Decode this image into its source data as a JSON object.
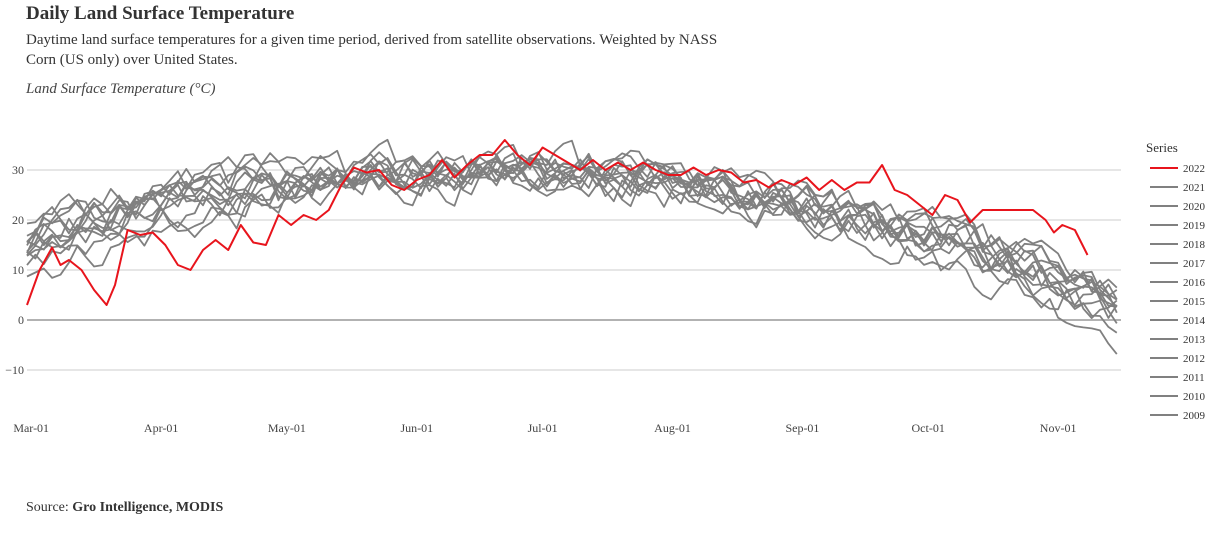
{
  "header": {
    "title": "Daily Land Surface Temperature",
    "subtitle": "Daytime land surface temperatures for a given time period, derived from satellite observations. Weighted by NASS Corn (US only) over United States.",
    "ylabel": "Land Surface Temperature  (°C)"
  },
  "footer": {
    "source_prefix": "Source: ",
    "source_name": "Gro Intelligence, MODIS"
  },
  "chart_data": {
    "type": "line",
    "title": "Daily Land Surface Temperature",
    "ylabel": "Land Surface Temperature  (°C)",
    "x_range": [
      "2022-02-28",
      "2022-11-16"
    ],
    "ylim": [
      -17,
      40
    ],
    "yticks": [
      -10,
      0,
      10,
      20,
      30
    ],
    "xticks": [
      "Mar-01",
      "Apr-01",
      "May-01",
      "Jun-01",
      "Jul-01",
      "Aug-01",
      "Sep-01",
      "Oct-01",
      "Nov-01"
    ],
    "grid": true,
    "legend": {
      "title": "Series",
      "position": "right"
    },
    "colors": {
      "highlight": "#e8141c",
      "other": "#808080",
      "grid": "#cccccc",
      "zero_line": "#999999"
    },
    "series": [
      {
        "name": "2022",
        "color": "#e8141c",
        "points": [
          [
            "2022-02-28",
            3
          ],
          [
            "2022-03-03",
            10
          ],
          [
            "2022-03-06",
            14.5
          ],
          [
            "2022-03-08",
            11
          ],
          [
            "2022-03-10",
            12
          ],
          [
            "2022-03-13",
            10
          ],
          [
            "2022-03-16",
            6
          ],
          [
            "2022-03-19",
            3
          ],
          [
            "2022-03-21",
            7
          ],
          [
            "2022-03-24",
            18
          ],
          [
            "2022-03-27",
            17
          ],
          [
            "2022-03-30",
            17.5
          ],
          [
            "2022-04-02",
            15
          ],
          [
            "2022-04-05",
            11
          ],
          [
            "2022-04-08",
            10
          ],
          [
            "2022-04-11",
            14
          ],
          [
            "2022-04-14",
            16
          ],
          [
            "2022-04-17",
            14
          ],
          [
            "2022-04-20",
            19
          ],
          [
            "2022-04-23",
            15.5
          ],
          [
            "2022-04-26",
            15
          ],
          [
            "2022-04-29",
            21
          ],
          [
            "2022-05-02",
            19
          ],
          [
            "2022-05-05",
            21
          ],
          [
            "2022-05-08",
            20
          ],
          [
            "2022-05-11",
            22
          ],
          [
            "2022-05-14",
            27
          ],
          [
            "2022-05-17",
            30.5
          ],
          [
            "2022-05-20",
            29.5
          ],
          [
            "2022-05-23",
            30
          ],
          [
            "2022-05-26",
            27
          ],
          [
            "2022-05-29",
            26
          ],
          [
            "2022-06-01",
            28
          ],
          [
            "2022-06-04",
            29
          ],
          [
            "2022-06-07",
            32
          ],
          [
            "2022-06-10",
            28.5
          ],
          [
            "2022-06-13",
            31
          ],
          [
            "2022-06-16",
            33
          ],
          [
            "2022-06-19",
            33
          ],
          [
            "2022-06-22",
            36
          ],
          [
            "2022-06-25",
            33
          ],
          [
            "2022-06-28",
            31
          ],
          [
            "2022-07-01",
            34.5
          ],
          [
            "2022-07-04",
            33
          ],
          [
            "2022-07-07",
            31.5
          ],
          [
            "2022-07-10",
            30
          ],
          [
            "2022-07-13",
            32
          ],
          [
            "2022-07-16",
            30
          ],
          [
            "2022-07-19",
            31.5
          ],
          [
            "2022-07-22",
            30
          ],
          [
            "2022-07-25",
            31.5
          ],
          [
            "2022-07-28",
            30
          ],
          [
            "2022-07-31",
            29
          ],
          [
            "2022-08-03",
            29
          ],
          [
            "2022-08-06",
            30.5
          ],
          [
            "2022-08-09",
            29
          ],
          [
            "2022-08-12",
            30
          ],
          [
            "2022-08-15",
            29.5
          ],
          [
            "2022-08-18",
            27.5
          ],
          [
            "2022-08-21",
            28
          ],
          [
            "2022-08-24",
            26.5
          ],
          [
            "2022-08-27",
            28
          ],
          [
            "2022-08-30",
            27
          ],
          [
            "2022-09-02",
            28.5
          ],
          [
            "2022-09-05",
            26
          ],
          [
            "2022-09-08",
            28
          ],
          [
            "2022-09-11",
            26
          ],
          [
            "2022-09-14",
            27.5
          ],
          [
            "2022-09-17",
            27.5
          ],
          [
            "2022-09-20",
            31
          ],
          [
            "2022-09-23",
            26
          ],
          [
            "2022-09-26",
            25
          ],
          [
            "2022-09-29",
            23
          ],
          [
            "2022-10-02",
            21
          ],
          [
            "2022-10-05",
            25
          ],
          [
            "2022-10-08",
            24
          ],
          [
            "2022-10-11",
            19.5
          ],
          [
            "2022-10-14",
            22
          ],
          [
            "2022-10-17",
            22
          ],
          [
            "2022-10-20",
            22
          ],
          [
            "2022-10-23",
            22
          ],
          [
            "2022-10-26",
            22
          ],
          [
            "2022-10-29",
            20
          ],
          [
            "2022-10-31",
            17.5
          ],
          [
            "2022-11-02",
            19
          ],
          [
            "2022-11-05",
            18
          ],
          [
            "2022-11-08",
            13
          ]
        ]
      },
      {
        "name": "2021",
        "color": "#808080",
        "points": []
      },
      {
        "name": "2020",
        "color": "#808080",
        "points": []
      },
      {
        "name": "2019",
        "color": "#808080",
        "points": []
      },
      {
        "name": "2018",
        "color": "#808080",
        "points": []
      },
      {
        "name": "2017",
        "color": "#808080",
        "points": []
      },
      {
        "name": "2016",
        "color": "#808080",
        "points": []
      },
      {
        "name": "2015",
        "color": "#808080",
        "points": []
      },
      {
        "name": "2014",
        "color": "#808080",
        "points": []
      },
      {
        "name": "2013",
        "color": "#808080",
        "points": []
      },
      {
        "name": "2012",
        "color": "#808080",
        "points": []
      },
      {
        "name": "2011",
        "color": "#808080",
        "points": []
      },
      {
        "name": "2010",
        "color": "#808080",
        "points": []
      },
      {
        "name": "2009",
        "color": "#808080",
        "points": []
      }
    ]
  }
}
